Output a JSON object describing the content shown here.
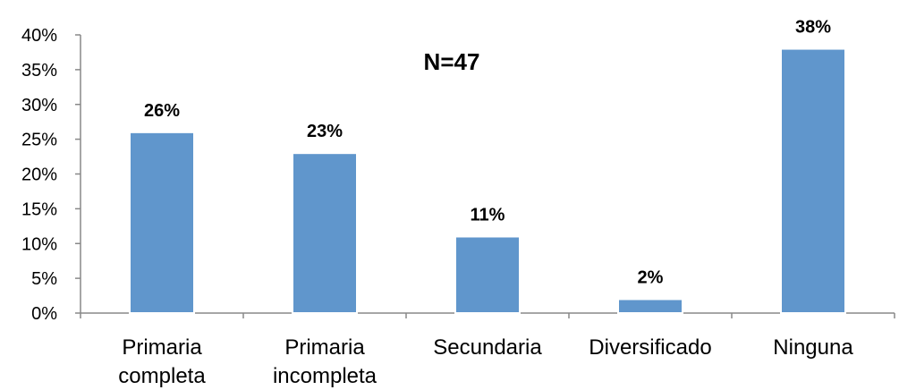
{
  "chart_data": {
    "type": "bar",
    "title": "",
    "annotation": "N=47",
    "categories": [
      [
        "Primaria",
        "completa"
      ],
      [
        "Primaria",
        "incompleta"
      ],
      [
        "Secundaria"
      ],
      [
        "Diversificado"
      ],
      [
        "Ninguna"
      ]
    ],
    "values": [
      26,
      23,
      11,
      2,
      38
    ],
    "data_labels": [
      "26%",
      "23%",
      "11%",
      "2%",
      "38%"
    ],
    "y_ticks": [
      "0%",
      "5%",
      "10%",
      "15%",
      "20%",
      "25%",
      "30%",
      "35%",
      "40%"
    ],
    "ylim": [
      0,
      40
    ],
    "xlabel": "",
    "ylabel": "",
    "grid": false,
    "legend": "none",
    "colors": {
      "bar": "#6096CC",
      "bar_edge": "#FFFFFF",
      "axis": "#888888",
      "text": "#000000"
    }
  }
}
